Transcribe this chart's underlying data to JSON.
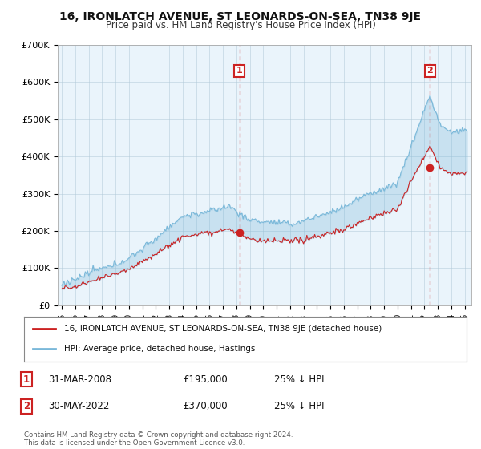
{
  "title": "16, IRONLATCH AVENUE, ST LEONARDS-ON-SEA, TN38 9JE",
  "subtitle": "Price paid vs. HM Land Registry's House Price Index (HPI)",
  "ylim": [
    0,
    700000
  ],
  "yticks": [
    0,
    100000,
    200000,
    300000,
    400000,
    500000,
    600000,
    700000
  ],
  "ytick_labels": [
    "£0",
    "£100K",
    "£200K",
    "£300K",
    "£400K",
    "£500K",
    "£600K",
    "£700K"
  ],
  "xlim_start": 1994.7,
  "xlim_end": 2025.5,
  "hpi_color": "#7ab8d9",
  "hpi_fill_color": "#daeef8",
  "price_color": "#cc2222",
  "price_fill_color": "#f8dada",
  "vline_color": "#cc2222",
  "marker1_x": 2008.24,
  "marker1_y": 195000,
  "marker1_label": "1",
  "marker1_date": "31-MAR-2008",
  "marker1_price": "£195,000",
  "marker1_note": "25% ↓ HPI",
  "marker2_x": 2022.41,
  "marker2_y": 370000,
  "marker2_label": "2",
  "marker2_date": "30-MAY-2022",
  "marker2_price": "£370,000",
  "marker2_note": "25% ↓ HPI",
  "legend_line1": "16, IRONLATCH AVENUE, ST LEONARDS-ON-SEA, TN38 9JE (detached house)",
  "legend_line2": "HPI: Average price, detached house, Hastings",
  "footer": "Contains HM Land Registry data © Crown copyright and database right 2024.\nThis data is licensed under the Open Government Licence v3.0.",
  "background_color": "#ffffff",
  "chart_bg_color": "#eaf4fb",
  "grid_color": "#b0c8d8"
}
